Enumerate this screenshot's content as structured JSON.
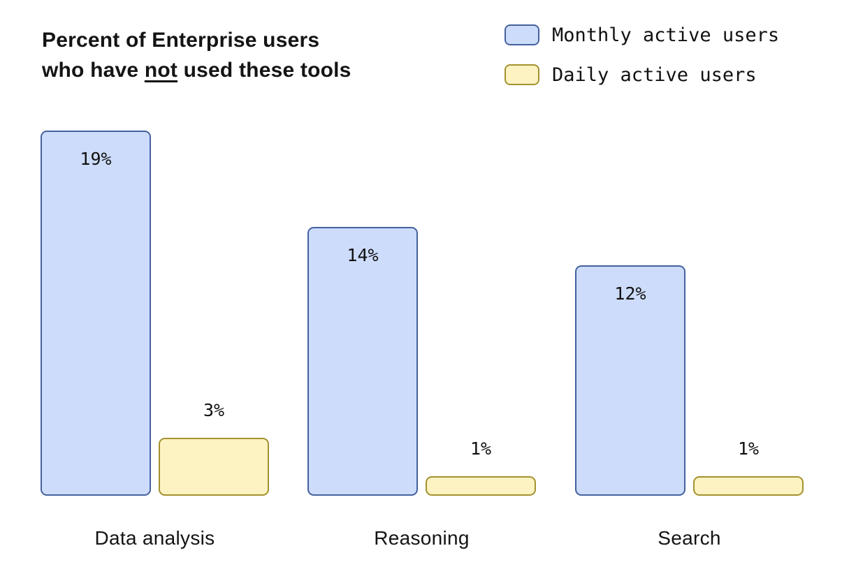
{
  "page": {
    "background": "#ffffff"
  },
  "title": {
    "line1": "Percent of Enterprise users",
    "line2_prefix": "who have ",
    "line2_underlined": "not",
    "line2_suffix": " used these tools"
  },
  "colors": {
    "monthly_fill": "#cddcfa",
    "monthly_border": "#44619e",
    "daily_fill": "#fdf2c1",
    "daily_border": "#a3922f",
    "text": "#111111"
  },
  "chart_data": {
    "type": "bar",
    "title": "Percent of Enterprise users who have not used these tools",
    "categories": [
      "Data analysis",
      "Reasoning",
      "Search"
    ],
    "series": [
      {
        "name": "Monthly active users",
        "values": [
          19,
          14,
          12
        ],
        "fill": "#cddcfa",
        "border": "#44619e",
        "value_label_position": "inside-top"
      },
      {
        "name": "Daily active users",
        "values": [
          3,
          1,
          1
        ],
        "fill": "#fdf2c1",
        "border": "#a3922f",
        "value_label_position": "above"
      }
    ],
    "value_suffix": "%",
    "xlabel": "",
    "ylabel": "",
    "ylim": [
      0,
      20
    ],
    "grid": false,
    "axes_visible": false,
    "legend_position": "top-right"
  }
}
